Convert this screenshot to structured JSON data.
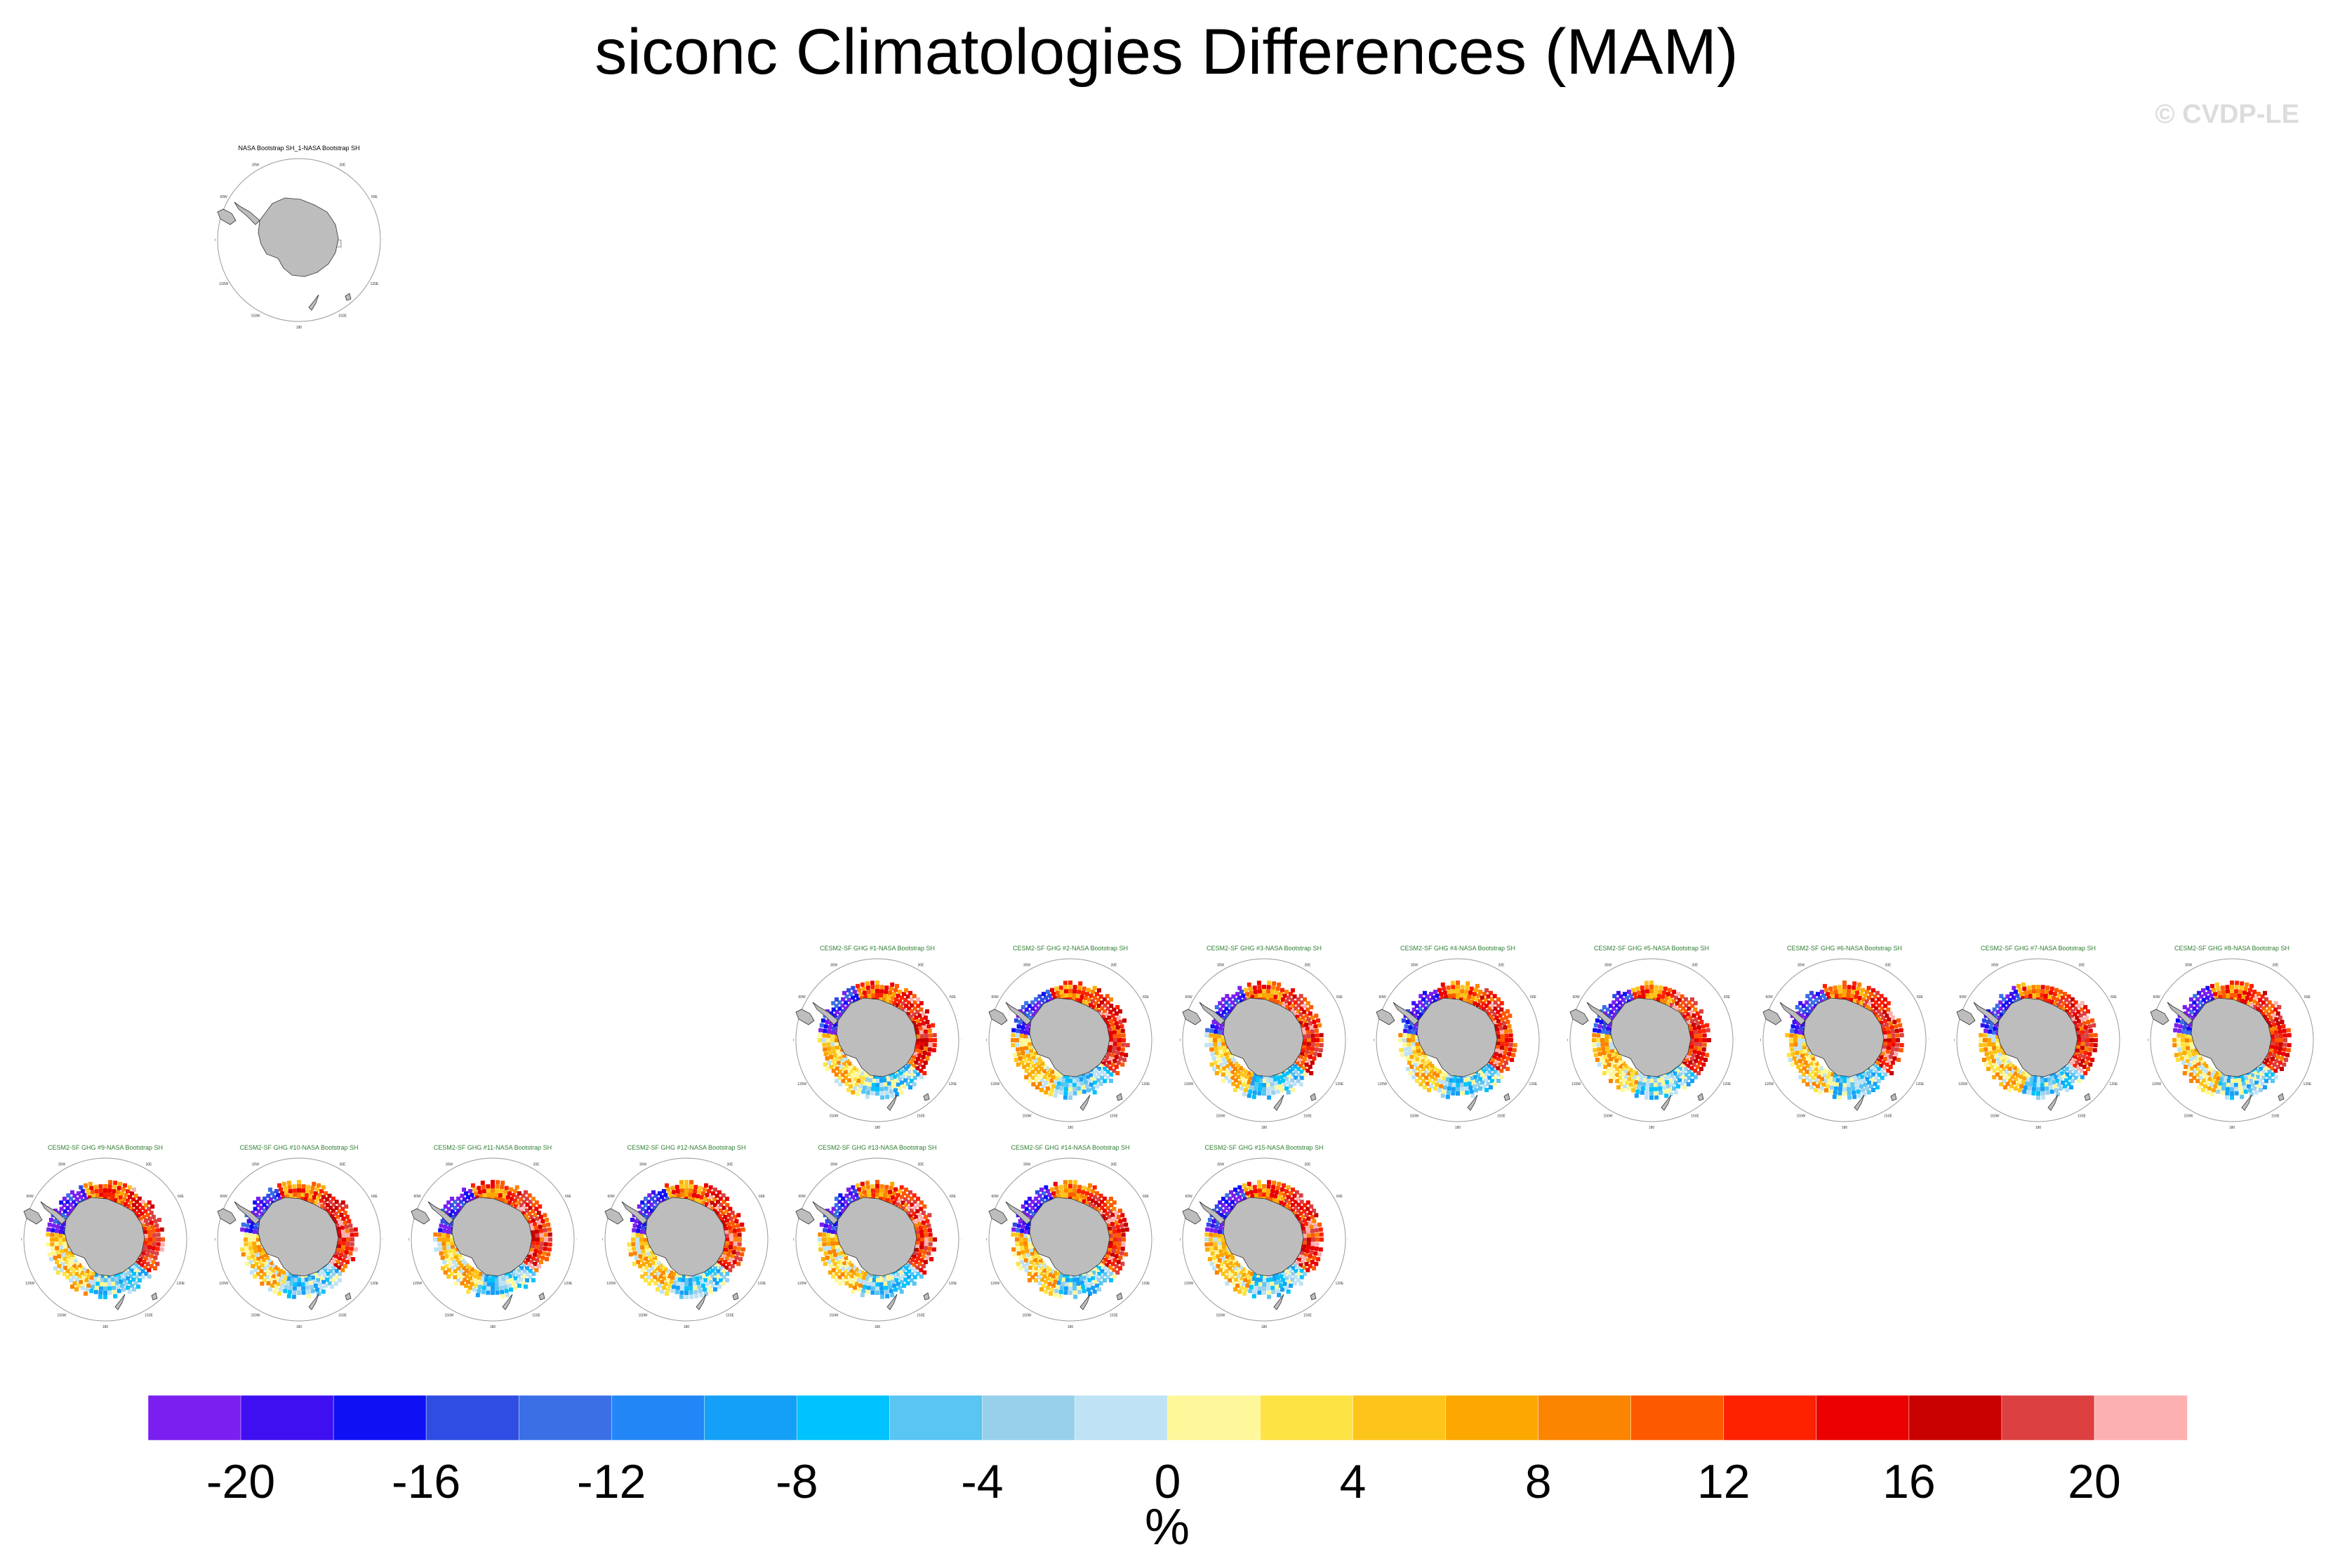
{
  "title": "siconc Climatologies Differences (MAM)",
  "copyright": "© CVDP-LE",
  "chart_data": {
    "type": "heatmap",
    "title": "siconc Climatologies Differences (MAM)",
    "projection": "south-polar-stereographic",
    "panels": [
      {
        "title": "NASA Bootstrap SH_1-NASA Bootstrap SH",
        "kind": "obs"
      },
      {
        "title": "CESM2-SF GHG #1-NASA Bootstrap SH",
        "kind": "model"
      },
      {
        "title": "CESM2-SF GHG #2-NASA Bootstrap SH",
        "kind": "model"
      },
      {
        "title": "CESM2-SF GHG #3-NASA Bootstrap SH",
        "kind": "model"
      },
      {
        "title": "CESM2-SF GHG #4-NASA Bootstrap SH",
        "kind": "model"
      },
      {
        "title": "CESM2-SF GHG #5-NASA Bootstrap SH",
        "kind": "model"
      },
      {
        "title": "CESM2-SF GHG #6-NASA Bootstrap SH",
        "kind": "model"
      },
      {
        "title": "CESM2-SF GHG #7-NASA Bootstrap SH",
        "kind": "model"
      },
      {
        "title": "CESM2-SF GHG #8-NASA Bootstrap SH",
        "kind": "model"
      },
      {
        "title": "CESM2-SF GHG #9-NASA Bootstrap SH",
        "kind": "model"
      },
      {
        "title": "CESM2-SF GHG #10-NASA Bootstrap SH",
        "kind": "model"
      },
      {
        "title": "CESM2-SF GHG #11-NASA Bootstrap SH",
        "kind": "model"
      },
      {
        "title": "CESM2-SF GHG #12-NASA Bootstrap SH",
        "kind": "model"
      },
      {
        "title": "CESM2-SF GHG #13-NASA Bootstrap SH",
        "kind": "model"
      },
      {
        "title": "CESM2-SF GHG #14-NASA Bootstrap SH",
        "kind": "model"
      },
      {
        "title": "CESM2-SF GHG #15-NASA Bootstrap SH",
        "kind": "model"
      }
    ],
    "map_labels": [
      "0",
      "30E",
      "60E",
      "90E",
      "120E",
      "150E",
      "180",
      "150W",
      "120W",
      "90W",
      "60W",
      "30W"
    ],
    "colorbar": {
      "label": "%",
      "min": -22,
      "max": 22,
      "step": 2,
      "tick_labels": [
        "-20",
        "-16",
        "-12",
        "-8",
        "-4",
        "0",
        "4",
        "8",
        "12",
        "16",
        "20"
      ],
      "colors": [
        "#7b1ff0",
        "#3f0ff2",
        "#1010f5",
        "#2f4de3",
        "#3a6fe6",
        "#2386f7",
        "#15a0f7",
        "#00c2fc",
        "#58c5f2",
        "#98d0ec",
        "#bfe2f5",
        "#fef89a",
        "#fde344",
        "#fdc41c",
        "#fca800",
        "#fb8400",
        "#fd5a00",
        "#fd2100",
        "#ea0000",
        "#c80000",
        "#dc4040",
        "#fcb0b0"
      ]
    }
  }
}
